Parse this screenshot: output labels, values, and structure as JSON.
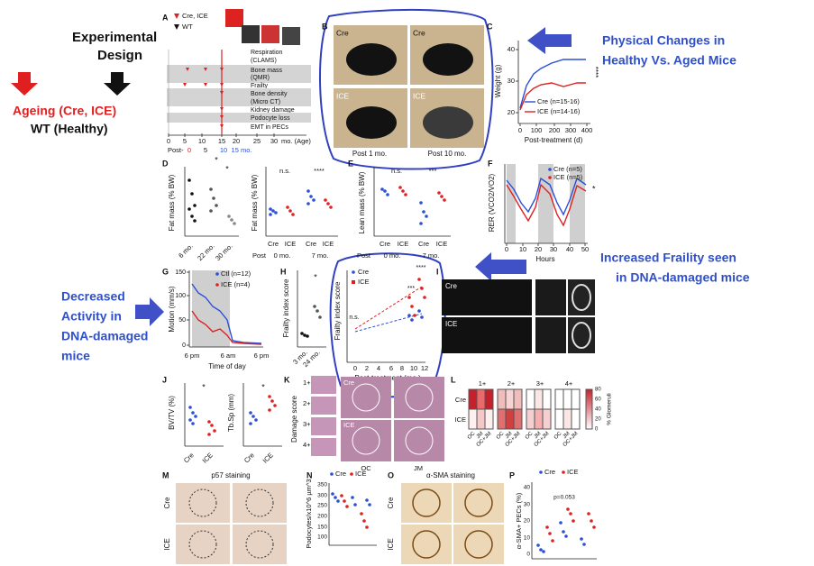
{
  "annotations": {
    "design": [
      "Experimental",
      "Design"
    ],
    "ageing": "Ageing (Cre, ICE)",
    "healthy": "WT (Healthy)",
    "physical": [
      "Physical Changes in",
      "Healthy Vs. Aged Mice"
    ],
    "frailty": [
      "Increased Fraility seen",
      "in DNA-damaged mice"
    ],
    "activity": [
      "Decreased",
      "Activity in",
      "DNA-damaged",
      "mice"
    ]
  },
  "panels": {
    "A": {
      "letter": "A",
      "legend": [
        "Cre, ICE",
        "WT"
      ],
      "rows": [
        [
          "Respiration",
          "(CLAMS)"
        ],
        [
          "Bone mass",
          "(QMR)"
        ],
        [
          "Frailty"
        ],
        [
          "Bone density",
          "(Micro CT)"
        ],
        [
          "Kidney damage"
        ],
        [
          "Podocyte loss"
        ],
        [
          "EMT in PECs"
        ]
      ],
      "age_ticks": [
        0,
        5,
        10,
        15,
        20,
        25,
        30
      ],
      "age_unit": "mo. (Age)",
      "post_label": "Post-",
      "post_ticks": [
        "0",
        "5",
        "10",
        "15 mo."
      ]
    },
    "B": {
      "letter": "B",
      "photo_labels": [
        "Cre",
        "Cre",
        "ICE",
        "ICE"
      ],
      "captions": [
        "Post 1 mo.",
        "Post 10 mo."
      ]
    },
    "C": {
      "letter": "C",
      "ylabel": "Weight (g)",
      "yticks": [
        20,
        30,
        40
      ],
      "xticks": [
        0,
        100,
        200,
        300,
        400
      ],
      "xlabel": "Post-treatment (d)",
      "legend": [
        "Cre (n=15-16)",
        "ICE (n=14-16)"
      ],
      "sig": "****"
    },
    "D": {
      "letter": "D",
      "ylabel": "Fat mass (% BW)",
      "ages": [
        "6 mo.",
        "22 mo.",
        "30 mo."
      ],
      "sig1": [
        "*",
        "*"
      ],
      "sig2": [
        "n.s.",
        "****"
      ],
      "groups": [
        "Cre",
        "ICE"
      ],
      "post": [
        "Post",
        "0 mo.",
        "7 mo."
      ]
    },
    "E": {
      "letter": "E",
      "ylabel": "Lean mass (% BW)",
      "sig": [
        "n.s.",
        "***"
      ],
      "groups": [
        "Cre",
        "ICE"
      ],
      "post": [
        "Post",
        "0 mo.",
        "7 mo."
      ]
    },
    "F": {
      "letter": "F",
      "ylabel": "RER (VCO2/VO2)",
      "xticks": [
        0,
        10,
        20,
        30,
        40,
        50
      ],
      "xlabel": "Hours",
      "legend": [
        "Cre (n=5)",
        "ICE (n=5)"
      ],
      "sig": "*"
    },
    "G": {
      "letter": "G",
      "ylabel": "Motion (mm/s)",
      "yticks": [
        0,
        50,
        100,
        150
      ],
      "times": [
        "6 pm",
        "6 am",
        "6 pm"
      ],
      "xlabel": "Time of day",
      "legend": [
        "Ctl (n=12)",
        "ICE (n=4)"
      ]
    },
    "H": {
      "letter": "H",
      "ylabel": "Frailty index score",
      "sig1": "*",
      "ages": [
        "3 mo.",
        "24 mo."
      ],
      "legend": [
        "Cre",
        "ICE"
      ],
      "sig2": [
        "n.s.",
        "***",
        "****"
      ],
      "xticks": [
        0,
        2,
        4,
        6,
        8,
        10,
        12
      ],
      "xlabel": "Post-treatment (mo.)"
    },
    "I": {
      "letter": "I",
      "labels": [
        "Cre",
        "ICE"
      ]
    },
    "J": {
      "letter": "J",
      "ylabels": [
        "BV/TV (%)",
        "Tb.Sp (mm)"
      ],
      "sig": "*",
      "groups": [
        "Cre",
        "ICE"
      ]
    },
    "K": {
      "letter": "K",
      "ylabel": "Damage score",
      "scores": [
        "1+",
        "2+",
        "3+",
        "4+"
      ],
      "groups": [
        "Cre",
        "ICE"
      ],
      "regions": [
        "OC",
        "JM"
      ]
    },
    "L": {
      "letter": "L",
      "scores": [
        "1+",
        "2+",
        "3+",
        "4+"
      ],
      "groups": [
        "Cre",
        "ICE"
      ],
      "regions": [
        "OC",
        "JM",
        "OC+JM"
      ],
      "scale_ticks": [
        0,
        20,
        40,
        60,
        80
      ],
      "scale_label": "% Glomeruli"
    },
    "M": {
      "letter": "M",
      "title": "p57 staining",
      "groups": [
        "Cre",
        "ICE"
      ]
    },
    "N": {
      "letter": "N",
      "ylabel": "Podocytes/x10^6 µm^3",
      "legend": [
        "Cre",
        "ICE"
      ],
      "yticks": [
        100,
        150,
        200,
        250,
        300,
        350
      ]
    },
    "O": {
      "letter": "O",
      "title": "α-SMA staining",
      "groups": [
        "Cre",
        "ICE"
      ]
    },
    "P": {
      "letter": "P",
      "ylabel": "α-SMA+ PECs (%)",
      "legend": [
        "Cre",
        "ICE"
      ],
      "note": "p=0.053",
      "yticks": [
        0,
        10,
        20,
        30,
        40
      ]
    }
  }
}
